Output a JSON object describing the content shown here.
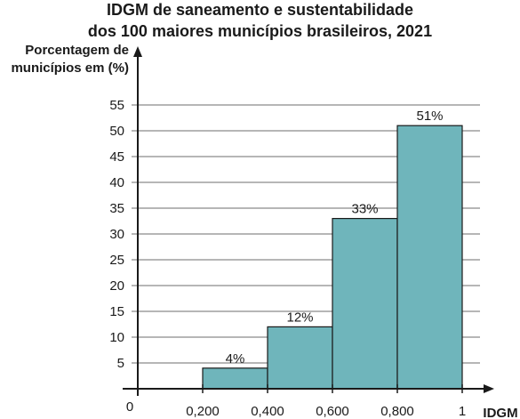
{
  "chart_data": {
    "type": "bar",
    "title_line1": "IDGM de saneamento e sustentabilidade",
    "title_line2": "dos 100 maiores municípios brasileiros, 2021",
    "ylabel_line1": "Porcentagem de",
    "ylabel_line2": "municípios em (%)",
    "xlabel": "IDGM",
    "origin_label": "0",
    "bins": [
      {
        "from": 0.2,
        "to": 0.4,
        "value": 4,
        "label": "4%"
      },
      {
        "from": 0.4,
        "to": 0.6,
        "value": 12,
        "label": "12%"
      },
      {
        "from": 0.6,
        "to": 0.8,
        "value": 33,
        "label": "33%"
      },
      {
        "from": 0.8,
        "to": 1.0,
        "value": 51,
        "label": "51%"
      }
    ],
    "x_ticks": [
      {
        "value": 0.2,
        "label": "0,200"
      },
      {
        "value": 0.4,
        "label": "0,400"
      },
      {
        "value": 0.6,
        "label": "0,600"
      },
      {
        "value": 0.8,
        "label": "0,800"
      },
      {
        "value": 1.0,
        "label": "1"
      }
    ],
    "y_ticks": [
      5,
      10,
      15,
      20,
      25,
      30,
      35,
      40,
      45,
      50,
      55
    ],
    "ylim": [
      0,
      55
    ],
    "xlim": [
      0,
      1
    ],
    "grid": true,
    "bar_color": "#6fb5bb",
    "grid_color": "#8a8a8a",
    "axis_color": "#1a1a1a"
  }
}
